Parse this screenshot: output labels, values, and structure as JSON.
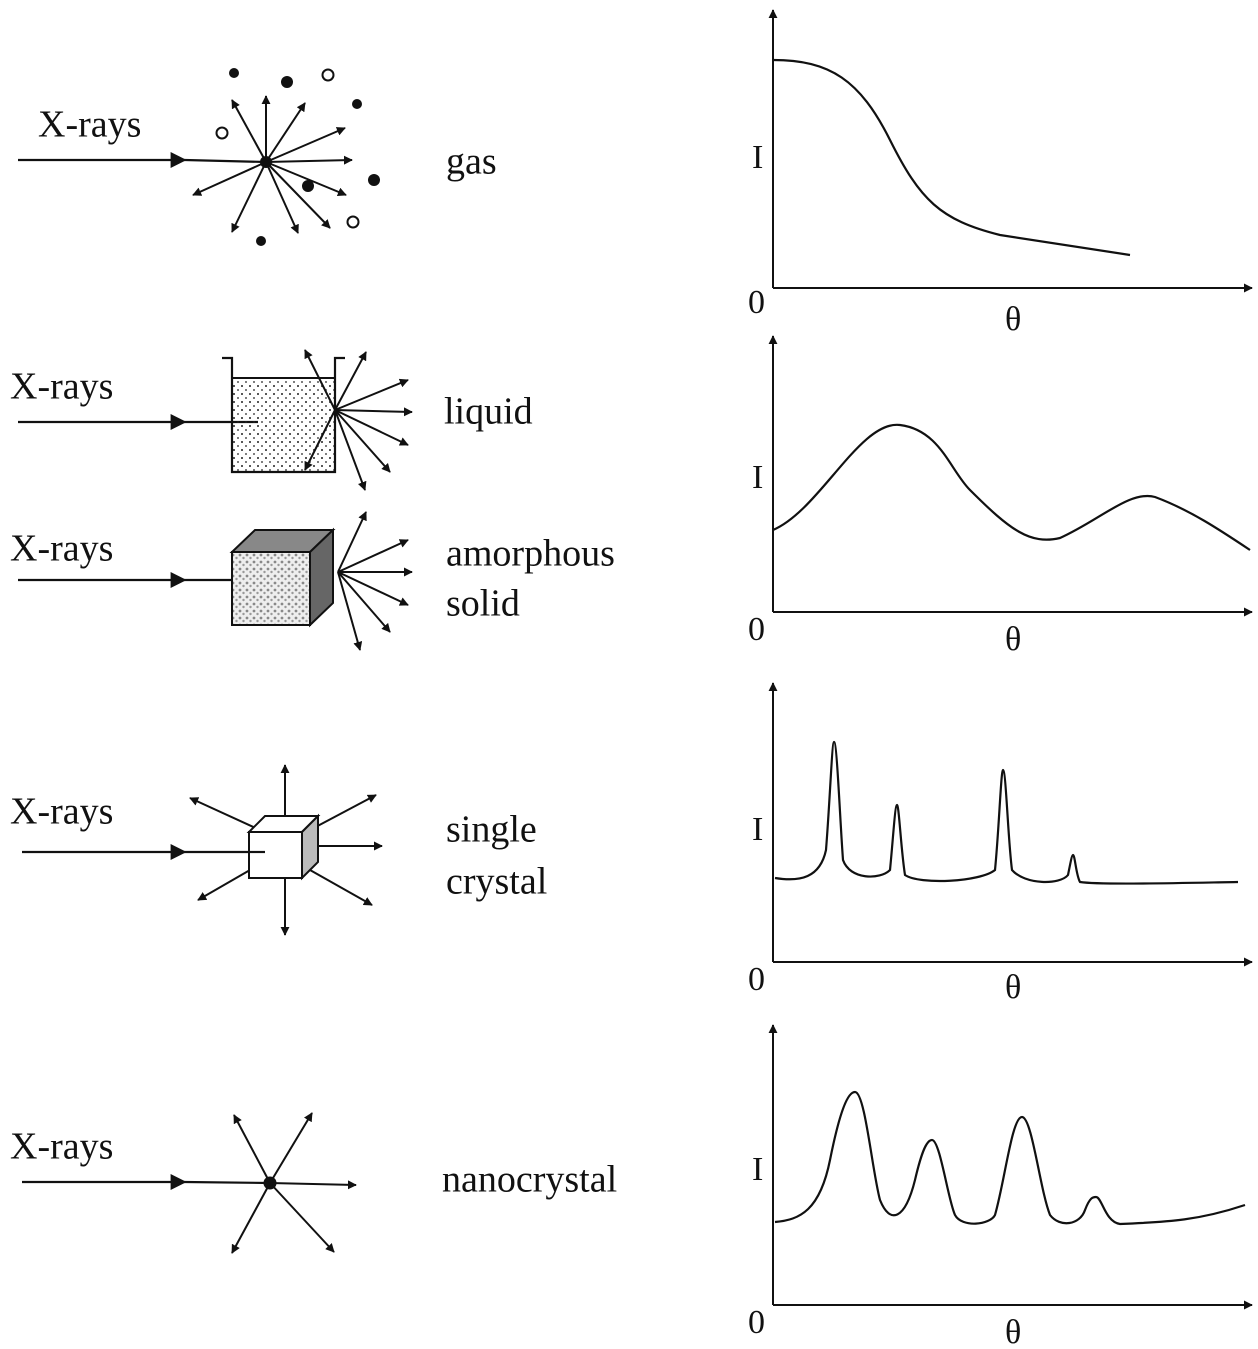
{
  "rows": [
    {
      "beam_label": "X-rays",
      "sample_label": [
        "gas"
      ]
    },
    {
      "beam_label": "X-rays",
      "sample_label": [
        "liquid"
      ]
    },
    {
      "beam_label": "X-rays",
      "sample_label": [
        "amorphous",
        "solid"
      ]
    },
    {
      "beam_label": "X-rays",
      "sample_label": [
        "single",
        "crystal"
      ]
    },
    {
      "beam_label": "X-rays",
      "sample_label": [
        "nanocrystal"
      ]
    }
  ],
  "plots": [
    {
      "y_label": "I",
      "origin": "0",
      "x_label": "θ"
    },
    {
      "y_label": "I",
      "origin": "0",
      "x_label": "θ"
    },
    {
      "y_label": "I",
      "origin": "0",
      "x_label": "θ"
    },
    {
      "y_label": "I",
      "origin": "0",
      "x_label": "θ"
    }
  ]
}
